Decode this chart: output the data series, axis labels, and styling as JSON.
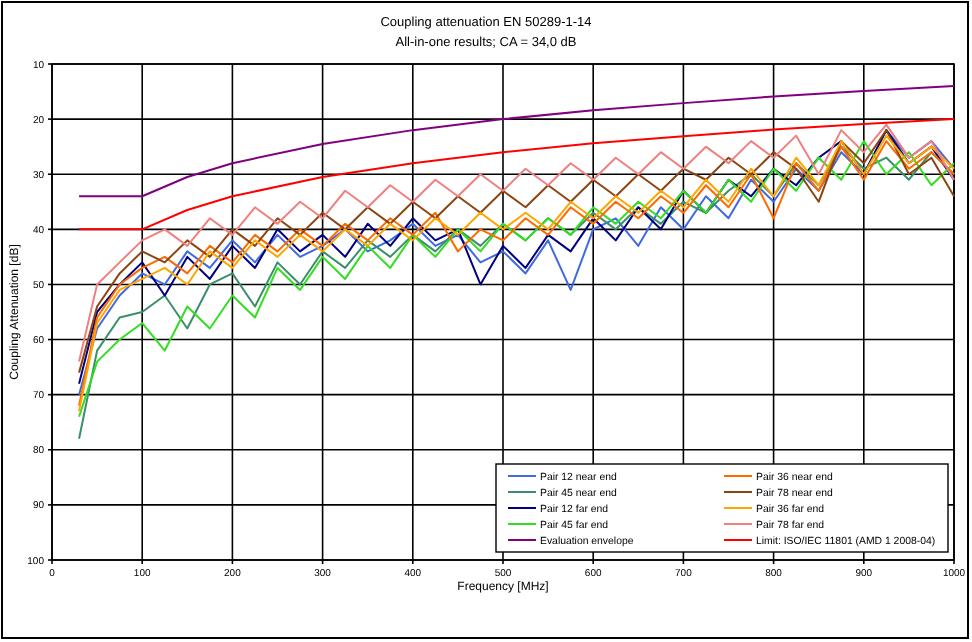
{
  "chart_data": {
    "type": "line",
    "title": "Coupling attenuation EN 50289-1-14",
    "subtitle": "All-in-one results; CA = 34,0 dB",
    "xlabel": "Frequency [MHz]",
    "ylabel": "Coupling Attenuation [dB]",
    "x": [
      30,
      50,
      75,
      100,
      125,
      150,
      175,
      200,
      225,
      250,
      275,
      300,
      325,
      350,
      375,
      400,
      425,
      450,
      475,
      500,
      525,
      550,
      575,
      600,
      625,
      650,
      675,
      700,
      725,
      750,
      775,
      800,
      825,
      850,
      875,
      900,
      925,
      950,
      975,
      1000
    ],
    "xlim": [
      0,
      1000
    ],
    "xticks": [
      0,
      100,
      200,
      300,
      400,
      500,
      600,
      700,
      800,
      900,
      1000
    ],
    "ylim": [
      100,
      10
    ],
    "yticks": [
      10,
      20,
      30,
      40,
      50,
      60,
      70,
      80,
      90,
      100
    ],
    "grid": true,
    "legend": "bottom right",
    "series": [
      {
        "name": "Pair 12 near end",
        "color": "#4169e1",
        "values": [
          70,
          58,
          52,
          48,
          50,
          44,
          47,
          42,
          46,
          41,
          45,
          43,
          40,
          44,
          42,
          39,
          43,
          41,
          46,
          44,
          48,
          42,
          51,
          40,
          38,
          43,
          36,
          40,
          34,
          38,
          31,
          35,
          29,
          33,
          26,
          30,
          22,
          27,
          24,
          29
        ]
      },
      {
        "name": "Pair 45 near end",
        "color": "#3a8f6a",
        "values": [
          78,
          62,
          56,
          55,
          52,
          58,
          50,
          48,
          54,
          46,
          50,
          44,
          47,
          42,
          45,
          41,
          44,
          40,
          43,
          39,
          42,
          38,
          41,
          37,
          40,
          36,
          39,
          35,
          37,
          33,
          30,
          34,
          28,
          32,
          25,
          29,
          27,
          31,
          26,
          30
        ]
      },
      {
        "name": "Pair 12 far end",
        "color": "#000080",
        "values": [
          68,
          55,
          50,
          46,
          52,
          45,
          49,
          43,
          47,
          40,
          44,
          41,
          45,
          39,
          43,
          38,
          42,
          40,
          50,
          43,
          47,
          41,
          44,
          38,
          42,
          36,
          40,
          33,
          37,
          31,
          34,
          29,
          32,
          27,
          24,
          30,
          22,
          28,
          25,
          31
        ]
      },
      {
        "name": "Pair 45 far end",
        "color": "#33dd22",
        "values": [
          74,
          64,
          60,
          57,
          62,
          54,
          58,
          52,
          56,
          47,
          51,
          45,
          49,
          43,
          47,
          41,
          45,
          40,
          44,
          39,
          42,
          38,
          41,
          36,
          39,
          35,
          38,
          33,
          37,
          31,
          35,
          29,
          33,
          27,
          31,
          24,
          30,
          26,
          32,
          28
        ]
      },
      {
        "name": "Evaluation envelope",
        "color": "#800080",
        "x": [
          30,
          100,
          150,
          200,
          300,
          400,
          500,
          600,
          700,
          800,
          900,
          1000
        ],
        "values": [
          34,
          34,
          30.5,
          28,
          24.5,
          22,
          20,
          18.4,
          17.1,
          15.9,
          14.9,
          14
        ]
      },
      {
        "name": "Pair 36 near end",
        "color": "#ff6a00",
        "values": [
          72,
          56,
          50,
          47,
          45,
          48,
          43,
          46,
          41,
          44,
          40,
          43,
          39,
          42,
          38,
          41,
          37,
          44,
          40,
          42,
          38,
          41,
          36,
          39,
          35,
          38,
          34,
          37,
          32,
          36,
          30,
          38,
          28,
          33,
          25,
          31,
          24,
          29,
          26,
          30
        ]
      },
      {
        "name": "Pair 78 near end",
        "color": "#8b4513",
        "values": [
          66,
          54,
          48,
          44,
          46,
          42,
          45,
          40,
          43,
          38,
          41,
          37,
          40,
          36,
          39,
          35,
          38,
          34,
          37,
          33,
          36,
          32,
          35,
          31,
          34,
          30,
          33,
          29,
          31,
          27,
          30,
          26,
          29,
          35,
          24,
          28,
          22,
          30,
          27,
          34
        ]
      },
      {
        "name": "Pair 36 far end",
        "color": "#ffa500",
        "values": [
          73,
          57,
          51,
          49,
          47,
          50,
          44,
          47,
          42,
          45,
          41,
          44,
          40,
          43,
          39,
          42,
          38,
          41,
          37,
          40,
          37,
          40,
          35,
          38,
          34,
          37,
          33,
          36,
          31,
          35,
          29,
          34,
          27,
          32,
          24,
          30,
          23,
          28,
          25,
          29
        ]
      },
      {
        "name": "Pair 78 far end",
        "color": "#f08080",
        "values": [
          64,
          50,
          46,
          42,
          40,
          43,
          38,
          41,
          36,
          39,
          35,
          38,
          33,
          36,
          32,
          35,
          31,
          34,
          30,
          33,
          29,
          32,
          28,
          31,
          27,
          30,
          26,
          29,
          25,
          28,
          24,
          27,
          23,
          30,
          22,
          26,
          21,
          27,
          24,
          31
        ]
      },
      {
        "name": "Limit: ISO/IEC 11801 (AMD 1 2008-04)",
        "color": "#ff0000",
        "x": [
          30,
          100,
          150,
          200,
          300,
          400,
          500,
          600,
          700,
          800,
          900,
          1000
        ],
        "values": [
          40,
          40,
          36.5,
          34,
          30.5,
          28,
          26,
          24.4,
          23.1,
          21.9,
          20.9,
          20
        ]
      }
    ]
  }
}
